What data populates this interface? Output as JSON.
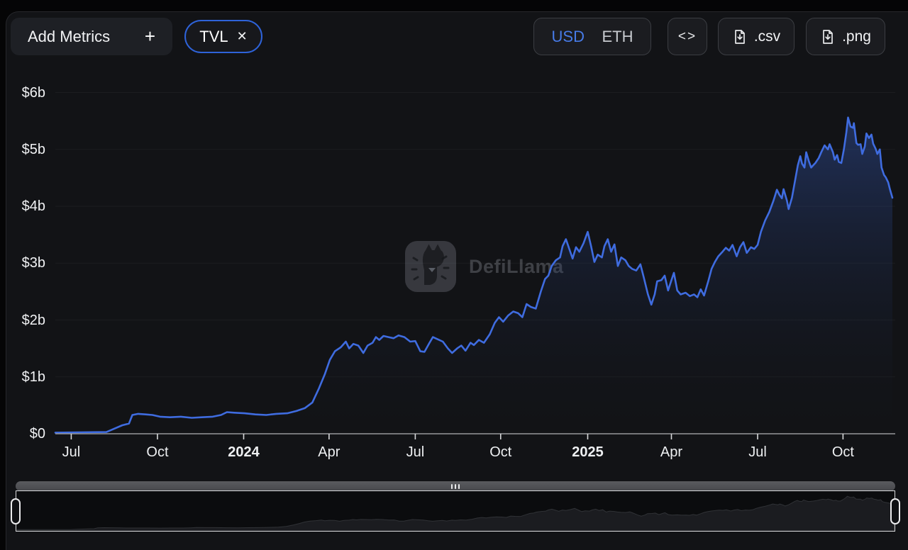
{
  "header": {
    "add_metrics": {
      "label": "Add Metrics",
      "plus": "+"
    },
    "metric_chip": {
      "label": "TVL",
      "close": "✕"
    },
    "currency_toggle": {
      "options": [
        "USD",
        "ETH"
      ],
      "selected": "USD"
    },
    "embed_button": {
      "glyph": "<>"
    },
    "export_csv_label": ".csv",
    "export_png_label": ".png"
  },
  "watermark": {
    "text": "DefiLlama",
    "logo": "defillama-llama-logo"
  },
  "colors": {
    "accent_blue": "#2e63da",
    "usd_text": "#477be8",
    "line": "#3f6ce0",
    "panel_bg": "#121316",
    "control_bg": "#1b1c20",
    "axis": "#96979a"
  },
  "chart_data": {
    "type": "area",
    "title": "TVL",
    "currency": "USD",
    "unit": "billion USD",
    "ylim": [
      0,
      6
    ],
    "grid": "faint-horizontal",
    "legend": "none",
    "y_ticks": [
      {
        "label": "$6b",
        "value": 6
      },
      {
        "label": "$5b",
        "value": 5
      },
      {
        "label": "$4b",
        "value": 4
      },
      {
        "label": "$3b",
        "value": 3
      },
      {
        "label": "$2b",
        "value": 2
      },
      {
        "label": "$1b",
        "value": 1
      },
      {
        "label": "$0",
        "value": 0
      }
    ],
    "x_domain": [
      "2023-06-15",
      "2025-11-20"
    ],
    "x_ticks": [
      {
        "label": "Jul",
        "t": 0.019,
        "bold": false
      },
      {
        "label": "Oct",
        "t": 0.122,
        "bold": false
      },
      {
        "label": "2024",
        "t": 0.225,
        "bold": true
      },
      {
        "label": "Apr",
        "t": 0.327,
        "bold": false
      },
      {
        "label": "Jul",
        "t": 0.43,
        "bold": false
      },
      {
        "label": "Oct",
        "t": 0.532,
        "bold": false
      },
      {
        "label": "2025",
        "t": 0.636,
        "bold": true
      },
      {
        "label": "Apr",
        "t": 0.736,
        "bold": false
      },
      {
        "label": "Jul",
        "t": 0.839,
        "bold": false
      },
      {
        "label": "Oct",
        "t": 0.941,
        "bold": false
      }
    ],
    "points": [
      [
        0.0,
        0.02
      ],
      [
        0.061,
        0.03
      ],
      [
        0.069,
        0.08
      ],
      [
        0.08,
        0.15
      ],
      [
        0.088,
        0.18
      ],
      [
        0.092,
        0.33
      ],
      [
        0.099,
        0.35
      ],
      [
        0.108,
        0.34
      ],
      [
        0.116,
        0.33
      ],
      [
        0.125,
        0.3
      ],
      [
        0.137,
        0.29
      ],
      [
        0.15,
        0.3
      ],
      [
        0.163,
        0.28
      ],
      [
        0.175,
        0.29
      ],
      [
        0.188,
        0.3
      ],
      [
        0.198,
        0.33
      ],
      [
        0.205,
        0.38
      ],
      [
        0.214,
        0.37
      ],
      [
        0.226,
        0.36
      ],
      [
        0.239,
        0.34
      ],
      [
        0.252,
        0.33
      ],
      [
        0.264,
        0.35
      ],
      [
        0.277,
        0.36
      ],
      [
        0.288,
        0.4
      ],
      [
        0.298,
        0.45
      ],
      [
        0.307,
        0.55
      ],
      [
        0.315,
        0.8
      ],
      [
        0.322,
        1.05
      ],
      [
        0.328,
        1.3
      ],
      [
        0.334,
        1.45
      ],
      [
        0.341,
        1.52
      ],
      [
        0.347,
        1.62
      ],
      [
        0.351,
        1.5
      ],
      [
        0.356,
        1.58
      ],
      [
        0.362,
        1.55
      ],
      [
        0.368,
        1.42
      ],
      [
        0.373,
        1.55
      ],
      [
        0.379,
        1.6
      ],
      [
        0.383,
        1.7
      ],
      [
        0.387,
        1.65
      ],
      [
        0.392,
        1.72
      ],
      [
        0.398,
        1.7
      ],
      [
        0.404,
        1.68
      ],
      [
        0.41,
        1.73
      ],
      [
        0.417,
        1.7
      ],
      [
        0.424,
        1.62
      ],
      [
        0.43,
        1.63
      ],
      [
        0.436,
        1.45
      ],
      [
        0.441,
        1.44
      ],
      [
        0.447,
        1.6
      ],
      [
        0.451,
        1.7
      ],
      [
        0.457,
        1.66
      ],
      [
        0.463,
        1.62
      ],
      [
        0.469,
        1.5
      ],
      [
        0.474,
        1.42
      ],
      [
        0.48,
        1.5
      ],
      [
        0.485,
        1.55
      ],
      [
        0.49,
        1.46
      ],
      [
        0.496,
        1.6
      ],
      [
        0.5,
        1.56
      ],
      [
        0.506,
        1.65
      ],
      [
        0.512,
        1.6
      ],
      [
        0.519,
        1.75
      ],
      [
        0.525,
        1.95
      ],
      [
        0.53,
        2.05
      ],
      [
        0.535,
        1.97
      ],
      [
        0.541,
        2.08
      ],
      [
        0.547,
        2.15
      ],
      [
        0.553,
        2.12
      ],
      [
        0.558,
        2.05
      ],
      [
        0.563,
        2.28
      ],
      [
        0.568,
        2.23
      ],
      [
        0.574,
        2.2
      ],
      [
        0.58,
        2.5
      ],
      [
        0.585,
        2.72
      ],
      [
        0.589,
        2.78
      ],
      [
        0.593,
        2.95
      ],
      [
        0.598,
        3.05
      ],
      [
        0.603,
        3.1
      ],
      [
        0.606,
        3.3
      ],
      [
        0.61,
        3.42
      ],
      [
        0.614,
        3.25
      ],
      [
        0.618,
        3.08
      ],
      [
        0.622,
        3.28
      ],
      [
        0.626,
        3.2
      ],
      [
        0.631,
        3.35
      ],
      [
        0.636,
        3.55
      ],
      [
        0.64,
        3.3
      ],
      [
        0.644,
        3.02
      ],
      [
        0.648,
        3.15
      ],
      [
        0.653,
        3.1
      ],
      [
        0.656,
        3.3
      ],
      [
        0.66,
        3.42
      ],
      [
        0.664,
        3.2
      ],
      [
        0.668,
        3.33
      ],
      [
        0.672,
        2.95
      ],
      [
        0.676,
        3.1
      ],
      [
        0.681,
        3.05
      ],
      [
        0.685,
        2.95
      ],
      [
        0.689,
        2.9
      ],
      [
        0.694,
        2.87
      ],
      [
        0.699,
        2.98
      ],
      [
        0.703,
        2.75
      ],
      [
        0.708,
        2.45
      ],
      [
        0.712,
        2.27
      ],
      [
        0.716,
        2.45
      ],
      [
        0.719,
        2.68
      ],
      [
        0.724,
        2.7
      ],
      [
        0.728,
        2.78
      ],
      [
        0.732,
        2.52
      ],
      [
        0.736,
        2.7
      ],
      [
        0.739,
        2.83
      ],
      [
        0.743,
        2.52
      ],
      [
        0.747,
        2.45
      ],
      [
        0.753,
        2.48
      ],
      [
        0.758,
        2.42
      ],
      [
        0.763,
        2.45
      ],
      [
        0.767,
        2.4
      ],
      [
        0.771,
        2.54
      ],
      [
        0.775,
        2.43
      ],
      [
        0.78,
        2.68
      ],
      [
        0.784,
        2.9
      ],
      [
        0.788,
        3.02
      ],
      [
        0.792,
        3.12
      ],
      [
        0.797,
        3.2
      ],
      [
        0.801,
        3.27
      ],
      [
        0.805,
        3.22
      ],
      [
        0.809,
        3.32
      ],
      [
        0.814,
        3.12
      ],
      [
        0.818,
        3.28
      ],
      [
        0.822,
        3.37
      ],
      [
        0.826,
        3.18
      ],
      [
        0.831,
        3.28
      ],
      [
        0.835,
        3.25
      ],
      [
        0.839,
        3.32
      ],
      [
        0.843,
        3.55
      ],
      [
        0.848,
        3.75
      ],
      [
        0.853,
        3.9
      ],
      [
        0.858,
        4.1
      ],
      [
        0.862,
        4.29
      ],
      [
        0.865,
        4.2
      ],
      [
        0.868,
        4.14
      ],
      [
        0.87,
        4.3
      ],
      [
        0.874,
        4.1
      ],
      [
        0.876,
        3.95
      ],
      [
        0.88,
        4.15
      ],
      [
        0.883,
        4.39
      ],
      [
        0.887,
        4.72
      ],
      [
        0.89,
        4.88
      ],
      [
        0.892,
        4.75
      ],
      [
        0.895,
        4.68
      ],
      [
        0.897,
        4.95
      ],
      [
        0.9,
        4.8
      ],
      [
        0.903,
        4.68
      ],
      [
        0.906,
        4.73
      ],
      [
        0.908,
        4.76
      ],
      [
        0.912,
        4.85
      ],
      [
        0.915,
        4.95
      ],
      [
        0.919,
        5.07
      ],
      [
        0.923,
        5.0
      ],
      [
        0.925,
        5.09
      ],
      [
        0.929,
        4.95
      ],
      [
        0.931,
        4.82
      ],
      [
        0.934,
        4.9
      ],
      [
        0.936,
        4.78
      ],
      [
        0.939,
        4.76
      ],
      [
        0.942,
        5.0
      ],
      [
        0.945,
        5.3
      ],
      [
        0.947,
        5.56
      ],
      [
        0.95,
        5.4
      ],
      [
        0.953,
        5.38
      ],
      [
        0.954,
        5.46
      ],
      [
        0.957,
        5.11
      ],
      [
        0.959,
        5.08
      ],
      [
        0.962,
        5.09
      ],
      [
        0.964,
        4.92
      ],
      [
        0.967,
        5.05
      ],
      [
        0.969,
        5.28
      ],
      [
        0.972,
        5.2
      ],
      [
        0.975,
        5.26
      ],
      [
        0.977,
        5.1
      ],
      [
        0.98,
        5.01
      ],
      [
        0.982,
        4.92
      ],
      [
        0.985,
        5.0
      ],
      [
        0.987,
        4.68
      ],
      [
        0.99,
        4.55
      ],
      [
        0.992,
        4.51
      ],
      [
        0.995,
        4.42
      ],
      [
        0.997,
        4.3
      ],
      [
        1.0,
        4.15
      ]
    ]
  },
  "brush": {
    "grip": "drag-grip",
    "left_handle": "range-start",
    "right_handle": "range-end"
  }
}
